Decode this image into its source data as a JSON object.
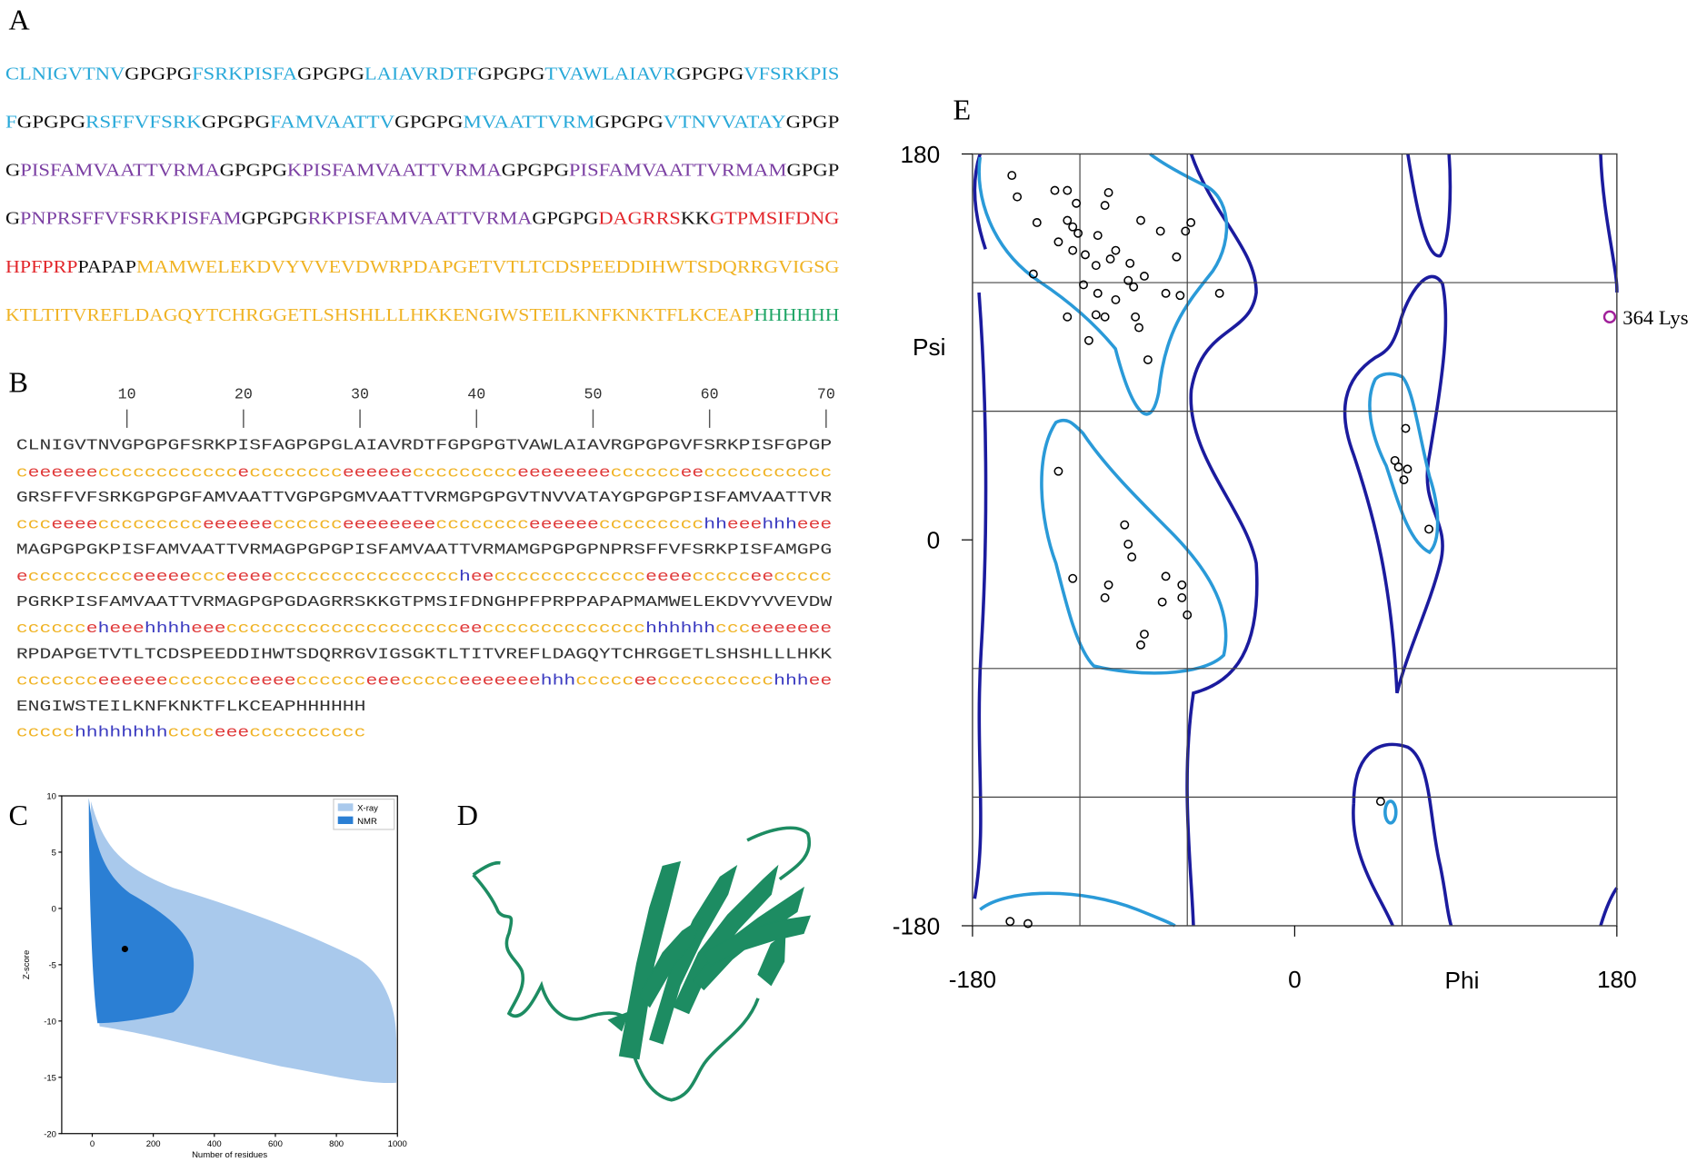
{
  "panel_labels": [
    "A",
    "B",
    "C",
    "D",
    "E"
  ],
  "sequence_panel": {
    "lines": [
      [
        {
          "text": "CLNIGVTNV",
          "color": "#29a9d9"
        },
        {
          "text": "GPGPG",
          "color": "#111111"
        },
        {
          "text": "FSRKPISFA",
          "color": "#29a9d9"
        },
        {
          "text": "GPGPG",
          "color": "#111111"
        },
        {
          "text": "LAIAVRDTF",
          "color": "#29a9d9"
        },
        {
          "text": "GPGPG",
          "color": "#111111"
        },
        {
          "text": "TVAWLAIAVR",
          "color": "#29a9d9"
        },
        {
          "text": "GPGPG",
          "color": "#111111"
        },
        {
          "text": "VFSRKPIS",
          "color": "#29a9d9"
        }
      ],
      [
        {
          "text": "F",
          "color": "#29a9d9"
        },
        {
          "text": "GPGPG",
          "color": "#111111"
        },
        {
          "text": "RSFFVFSRK",
          "color": "#29a9d9"
        },
        {
          "text": "GPGPG",
          "color": "#111111"
        },
        {
          "text": "FAMVAATTV",
          "color": "#29a9d9"
        },
        {
          "text": "GPGPG",
          "color": "#111111"
        },
        {
          "text": "MVAATTVRM",
          "color": "#29a9d9"
        },
        {
          "text": "GPGPG",
          "color": "#111111"
        },
        {
          "text": "VTNVVATAY",
          "color": "#29a9d9"
        },
        {
          "text": "GPGP",
          "color": "#111111"
        }
      ],
      [
        {
          "text": "G",
          "color": "#111111"
        },
        {
          "text": "PISFAMVAATTVRMA",
          "color": "#7b3fa3"
        },
        {
          "text": "GPGPG",
          "color": "#111111"
        },
        {
          "text": "KPISFAMVAATTVRMA",
          "color": "#7b3fa3"
        },
        {
          "text": "GPGPG",
          "color": "#111111"
        },
        {
          "text": "PISFAMVAATTVRMAM",
          "color": "#7b3fa3"
        },
        {
          "text": "GPGP",
          "color": "#111111"
        }
      ],
      [
        {
          "text": "G",
          "color": "#111111"
        },
        {
          "text": "PNPRSFFVFSRKPISFAM",
          "color": "#7b3fa3"
        },
        {
          "text": "GPGPG",
          "color": "#111111"
        },
        {
          "text": "RKPISFAMVAATTVRMA",
          "color": "#7b3fa3"
        },
        {
          "text": "GPGPG",
          "color": "#111111"
        },
        {
          "text": "DAGRRS",
          "color": "#e2262b"
        },
        {
          "text": "KK",
          "color": "#111111"
        },
        {
          "text": "GTPMSIFDNG",
          "color": "#e2262b"
        }
      ],
      [
        {
          "text": "HPFPRP",
          "color": "#e2262b"
        },
        {
          "text": "PAPAP",
          "color": "#111111"
        },
        {
          "text": "MAMWELEKDVYVVEVDWRPDAPGETVTLTCDSPEEDDIHWTSDQRRGVIGSG",
          "color": "#f0b324"
        }
      ],
      [
        {
          "text": "KTLTITVREFLDAGQYTCHRGGETLSHSHLLLHKKENGIWSTEILKNFKNKTFLKCEAP",
          "color": "#f0b324"
        },
        {
          "text": "HHHHHH",
          "color": "#1ea565"
        }
      ]
    ]
  },
  "secondary_structure": {
    "ruler": [
      10,
      20,
      30,
      40,
      50,
      60,
      70
    ],
    "ss_colors": {
      "c": "#f0b324",
      "e": "#e03a3a",
      "h": "#3a3ac0"
    },
    "rows": [
      {
        "sequence": "CLNIGVTNVGPGPGFSRKPISFAGPGPGLAIAVRDTFGPGPGTVAWLAIAVRGPGPGVFSRKPISFGPGP",
        "ss": [
          "c",
          "eeeeee",
          "cccccccccccc",
          "e",
          "cccccccc",
          "eeeeee",
          "ccccccccc",
          "eeeeeeee",
          "cccccc",
          "ee",
          "ccccccccccc"
        ]
      },
      {
        "sequence": "GRSFFVFSRKGPGPGFAMVAATTVGPGPGMVAATTVRMGPGPGVTNVVATAYGPGPGPISFAMVAATTVR",
        "ss": [
          "ccc",
          "eeee",
          "ccccccccc",
          "eeeeee",
          "cccccc",
          "eeeeeeee",
          "cccccccc",
          "eeeeee",
          "ccccccccc",
          "hh",
          "eee",
          "hhh",
          "eee"
        ]
      },
      {
        "sequence": "MAGPGPGKPISFAMVAATTVRMAGPGPGPISFAMVAATTVRMAMGPGPGPNPRSFFVFSRKPISFAMGPG",
        "ss": [
          "e",
          "ccccccccc",
          "eeeee",
          "ccc",
          "eeee",
          "cccccccccccccccc",
          "h",
          "ee",
          "ccccccccccccc",
          "eeee",
          "ccccc",
          "ee",
          "ccccc"
        ]
      },
      {
        "sequence": "PGRKPISFAMVAATTVRMAGPGPGDAGRRSKKGTPMSIFDNGHPFPRPPAPAPMAMWELEKDVYVVEVDW",
        "ss": [
          "cccccc",
          "e",
          "h",
          "eee",
          "hhhh",
          "eee",
          "cccccccccccccccccccc",
          "ee",
          "cccccccccccccc",
          "hhhhhh",
          "ccc",
          "eeeeeee"
        ]
      },
      {
        "sequence": "RPDAPGETVTLTCDSPEEDDIHWTSDQRRGVIGSGKTLTITVREFLDAGQYTCHRGGETLSHSHLLLHKK",
        "ss": [
          "ccccccc",
          "eeeeee",
          "ccccccc",
          "eeee",
          "cccccc",
          "eee",
          "ccccc",
          "eeeeeee",
          "hhh",
          "ccccc",
          "ee",
          "cccccccccc",
          "hhh",
          "ee"
        ]
      },
      {
        "sequence": "ENGIWSTEILKNFKNKTFLKCEAPHHHHHH",
        "ss": [
          "ccccc",
          "hhhhhhhh",
          "cccc",
          "eee",
          "cccccccccc"
        ]
      }
    ]
  },
  "chart_data": [
    {
      "type": "scatter",
      "x_label": "Number of residues",
      "y_label": "Z-score",
      "xlim": [
        -100,
        1000
      ],
      "ylim": [
        -20,
        10
      ],
      "xticks": [
        0,
        200,
        400,
        600,
        800,
        1000
      ],
      "yticks": [
        10,
        5,
        0,
        -5,
        -10,
        -15,
        -20
      ],
      "series": [
        {
          "name": "X-ray",
          "color": "#a9c9ec"
        },
        {
          "name": "NMR",
          "color": "#2b7fd4"
        }
      ],
      "query_point": {
        "x": 107,
        "y": -3.6,
        "color": "#000000"
      }
    },
    {
      "type": "scatter",
      "x_label": "Phi",
      "y_label": "Psi",
      "xlim": [
        -180,
        180
      ],
      "ylim": [
        -180,
        180
      ],
      "xticks": [
        -180,
        0,
        180
      ],
      "yticks": [
        180,
        0,
        -180
      ],
      "grid_x": [
        -120,
        -60,
        60
      ],
      "grid_y": [
        120,
        60,
        -60,
        -120
      ],
      "color": "#000000",
      "x": [
        -158,
        -155,
        -144,
        -134,
        -127,
        -122,
        -104,
        -106,
        -86,
        -75,
        -58,
        -61,
        -127,
        -124,
        -121,
        -110,
        -132,
        -124,
        -117,
        -100,
        -103,
        -111,
        -92,
        -84,
        -93,
        -90,
        -72,
        -64,
        -66,
        -146,
        -118,
        -110,
        -111,
        -106,
        -127,
        -100,
        -89,
        -87,
        -115,
        -82,
        -42,
        -132,
        -95,
        -93,
        -91,
        -124,
        -104,
        -106,
        -72,
        -63,
        -74,
        -63,
        -60,
        -84,
        -86,
        62,
        56,
        58,
        63,
        61,
        75,
        48,
        -159,
        -149
      ],
      "y": [
        170,
        160,
        148,
        163,
        163,
        157,
        162,
        156,
        149,
        144,
        148,
        144,
        149,
        146,
        143,
        142,
        139,
        135,
        133,
        135,
        131,
        128,
        129,
        123,
        121,
        118,
        115,
        114,
        132,
        124,
        119,
        115,
        105,
        104,
        104,
        112,
        104,
        99,
        93,
        84,
        115,
        32,
        7,
        -2,
        -8,
        -18,
        -21,
        -27,
        -17,
        -21,
        -29,
        -27,
        -35,
        -44,
        -49,
        52,
        37,
        34,
        33,
        28,
        5,
        -122,
        -178,
        -179
      ],
      "outlier": {
        "x": 176,
        "y": 104,
        "label": "364 Lys",
        "color": "#a0209a"
      }
    }
  ]
}
